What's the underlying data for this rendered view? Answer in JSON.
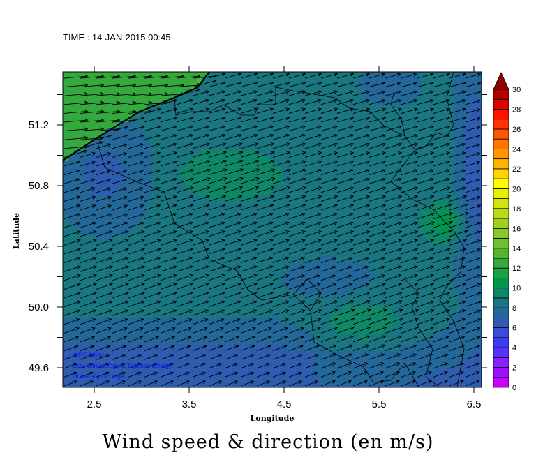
{
  "header": {
    "time_label": "TIME : 14-JAN-2015 00:45"
  },
  "footer": {
    "title": "Wind speed & direction (en m/s)"
  },
  "credits": [
    "WRF-NMM",
    "Lab. Climatology & Topoclimatology",
    "University of Liege"
  ],
  "chart_data": {
    "type": "heatmap",
    "overlay": "wind vectors",
    "title": "Wind speed & direction (en m/s)",
    "xlabel": "Longitude",
    "ylabel": "Latitude",
    "xlim": [
      2.2,
      6.6
    ],
    "ylim": [
      49.47,
      51.52
    ],
    "xticks": [
      "2.5",
      "3.5",
      "4.5",
      "5.5",
      "6.5"
    ],
    "yticks": [
      "49.6",
      "50.0",
      "50.4",
      "50.8",
      "51.2"
    ],
    "dominant_wind_direction": "west-southwest (blowing toward east-northeast)",
    "colorbar": {
      "range": [
        0,
        30
      ],
      "step": 1,
      "labels": [
        "0",
        "2",
        "4",
        "6",
        "8",
        "10",
        "12",
        "14",
        "16",
        "18",
        "20",
        "22",
        "24",
        "26",
        "28",
        "30"
      ],
      "extend": "max",
      "colors": [
        "#cc00ff",
        "#a010ff",
        "#8a20ff",
        "#5a30ff",
        "#3c3cf0",
        "#3a4cd8",
        "#2e5cb0",
        "#24689a",
        "#1a7680",
        "#0f8868",
        "#00964e",
        "#1ea044",
        "#34aa3e",
        "#52b432",
        "#6ec030",
        "#8ac82a",
        "#a2d022",
        "#bcda18",
        "#d2e410",
        "#e8f000",
        "#ffff00",
        "#ffd400",
        "#ffb400",
        "#ff9400",
        "#ff7400",
        "#ff5400",
        "#ff3400",
        "#ff1200",
        "#e00000",
        "#b40000"
      ],
      "extend_color": "#900000"
    }
  }
}
